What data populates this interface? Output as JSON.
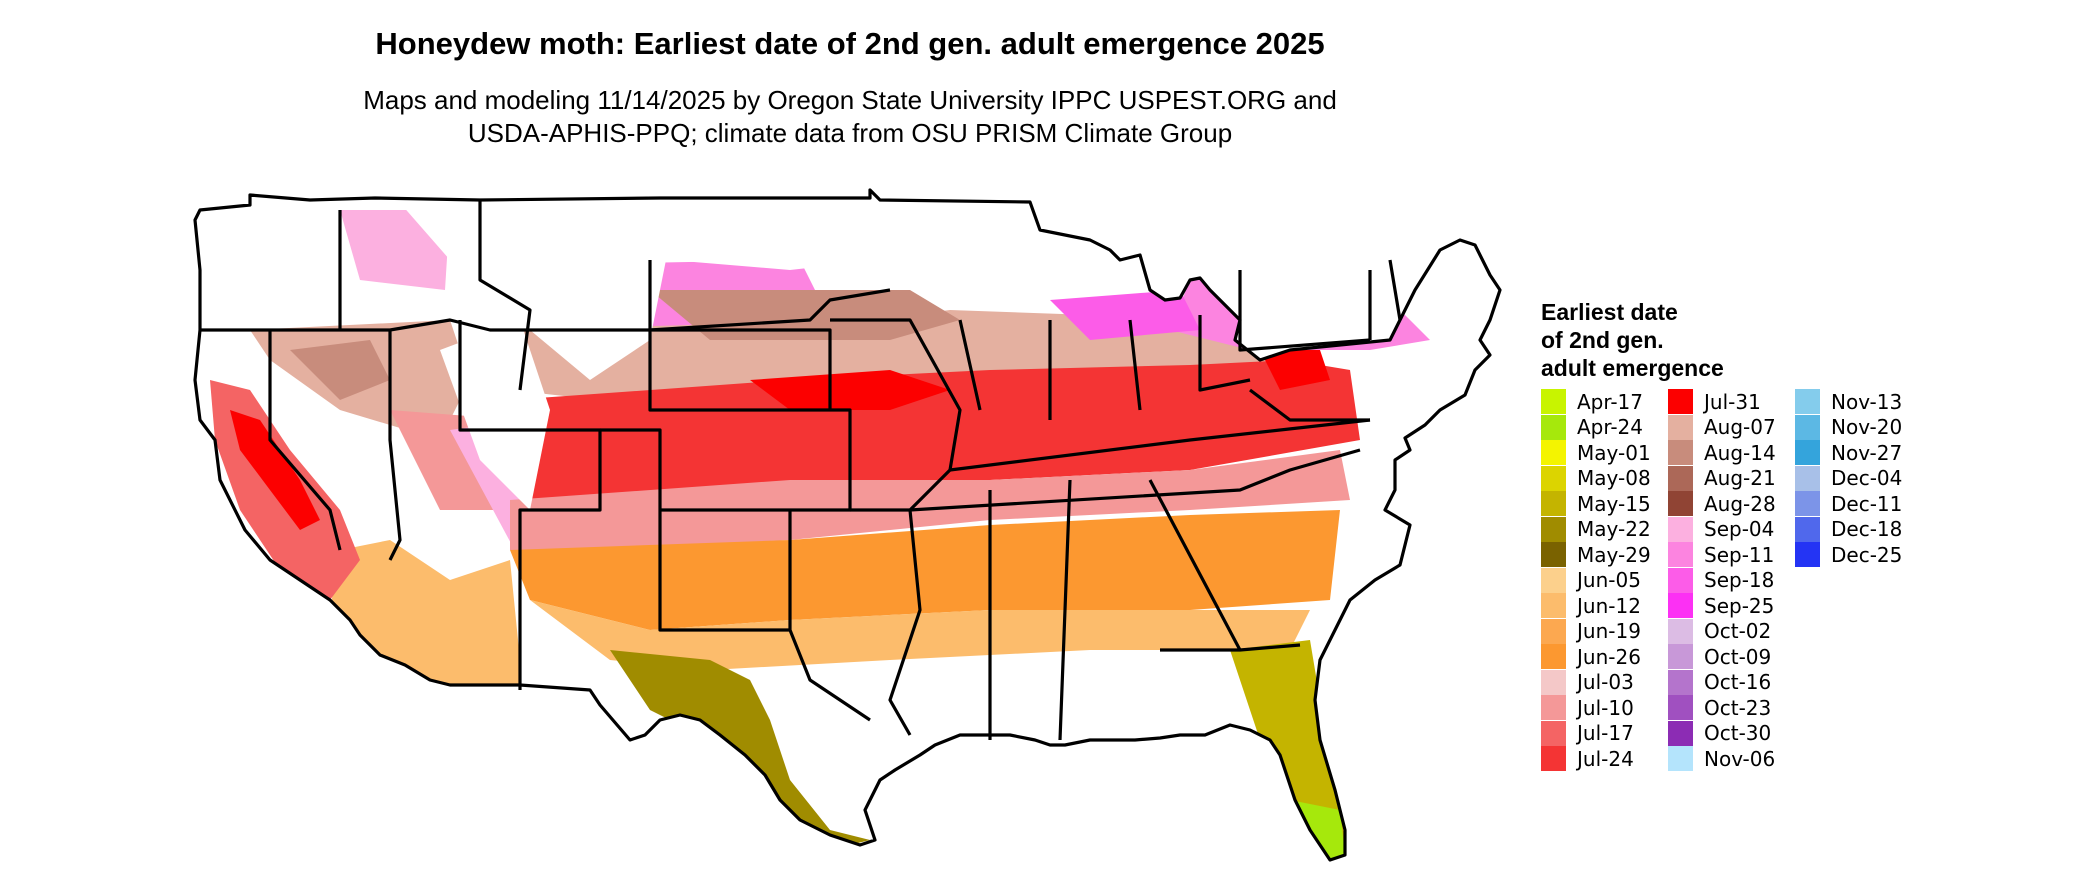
{
  "title": "Honeydew moth: Earliest date of 2nd gen. adult emergence 2025",
  "subtitle": {
    "line1": "Maps and modeling 11/14/2025 by Oregon State University IPPC USPEST.ORG and",
    "line2": "USDA-APHIS-PPQ; climate data from OSU PRISM Climate Group"
  },
  "legend": {
    "title_lines": [
      "Earliest date",
      "of 2nd gen.",
      "adult emergence"
    ],
    "items": [
      {
        "label": "Apr-17",
        "color": "#c8f400"
      },
      {
        "label": "Apr-24",
        "color": "#a6e80c"
      },
      {
        "label": "May-01",
        "color": "#f4f400"
      },
      {
        "label": "May-08",
        "color": "#dcd400"
      },
      {
        "label": "May-15",
        "color": "#c4b400"
      },
      {
        "label": "May-22",
        "color": "#a08c00"
      },
      {
        "label": "May-29",
        "color": "#7a6200"
      },
      {
        "label": "Jun-05",
        "color": "#fcd08c"
      },
      {
        "label": "Jun-12",
        "color": "#fcbc6c"
      },
      {
        "label": "Jun-19",
        "color": "#fca850"
      },
      {
        "label": "Jun-26",
        "color": "#fc9830"
      },
      {
        "label": "Jul-03",
        "color": "#f4c8c8"
      },
      {
        "label": "Jul-10",
        "color": "#f49898"
      },
      {
        "label": "Jul-17",
        "color": "#f46464"
      },
      {
        "label": "Jul-24",
        "color": "#f43434"
      },
      {
        "label": "Jul-31",
        "color": "#fc0000"
      },
      {
        "label": "Aug-07",
        "color": "#e4b0a0"
      },
      {
        "label": "Aug-14",
        "color": "#c88c7c"
      },
      {
        "label": "Aug-21",
        "color": "#ac6858"
      },
      {
        "label": "Aug-28",
        "color": "#904434"
      },
      {
        "label": "Sep-04",
        "color": "#fcb0e0"
      },
      {
        "label": "Sep-11",
        "color": "#fc84e0"
      },
      {
        "label": "Sep-18",
        "color": "#fc5ce8"
      },
      {
        "label": "Sep-25",
        "color": "#fc30f4"
      },
      {
        "label": "Oct-02",
        "color": "#dcbce4"
      },
      {
        "label": "Oct-09",
        "color": "#c898d8"
      },
      {
        "label": "Oct-16",
        "color": "#b474cc"
      },
      {
        "label": "Oct-23",
        "color": "#a050c0"
      },
      {
        "label": "Oct-30",
        "color": "#8c2cb4"
      },
      {
        "label": "Nov-06",
        "color": "#b4e4fc"
      },
      {
        "label": "Nov-13",
        "color": "#84ccec"
      },
      {
        "label": "Nov-20",
        "color": "#5cb8e4"
      },
      {
        "label": "Nov-27",
        "color": "#34a4dc"
      },
      {
        "label": "Dec-04",
        "color": "#a8c0e8"
      },
      {
        "label": "Dec-11",
        "color": "#7c94e8"
      },
      {
        "label": "Dec-18",
        "color": "#5068ec"
      },
      {
        "label": "Dec-25",
        "color": "#2434f4"
      }
    ]
  }
}
